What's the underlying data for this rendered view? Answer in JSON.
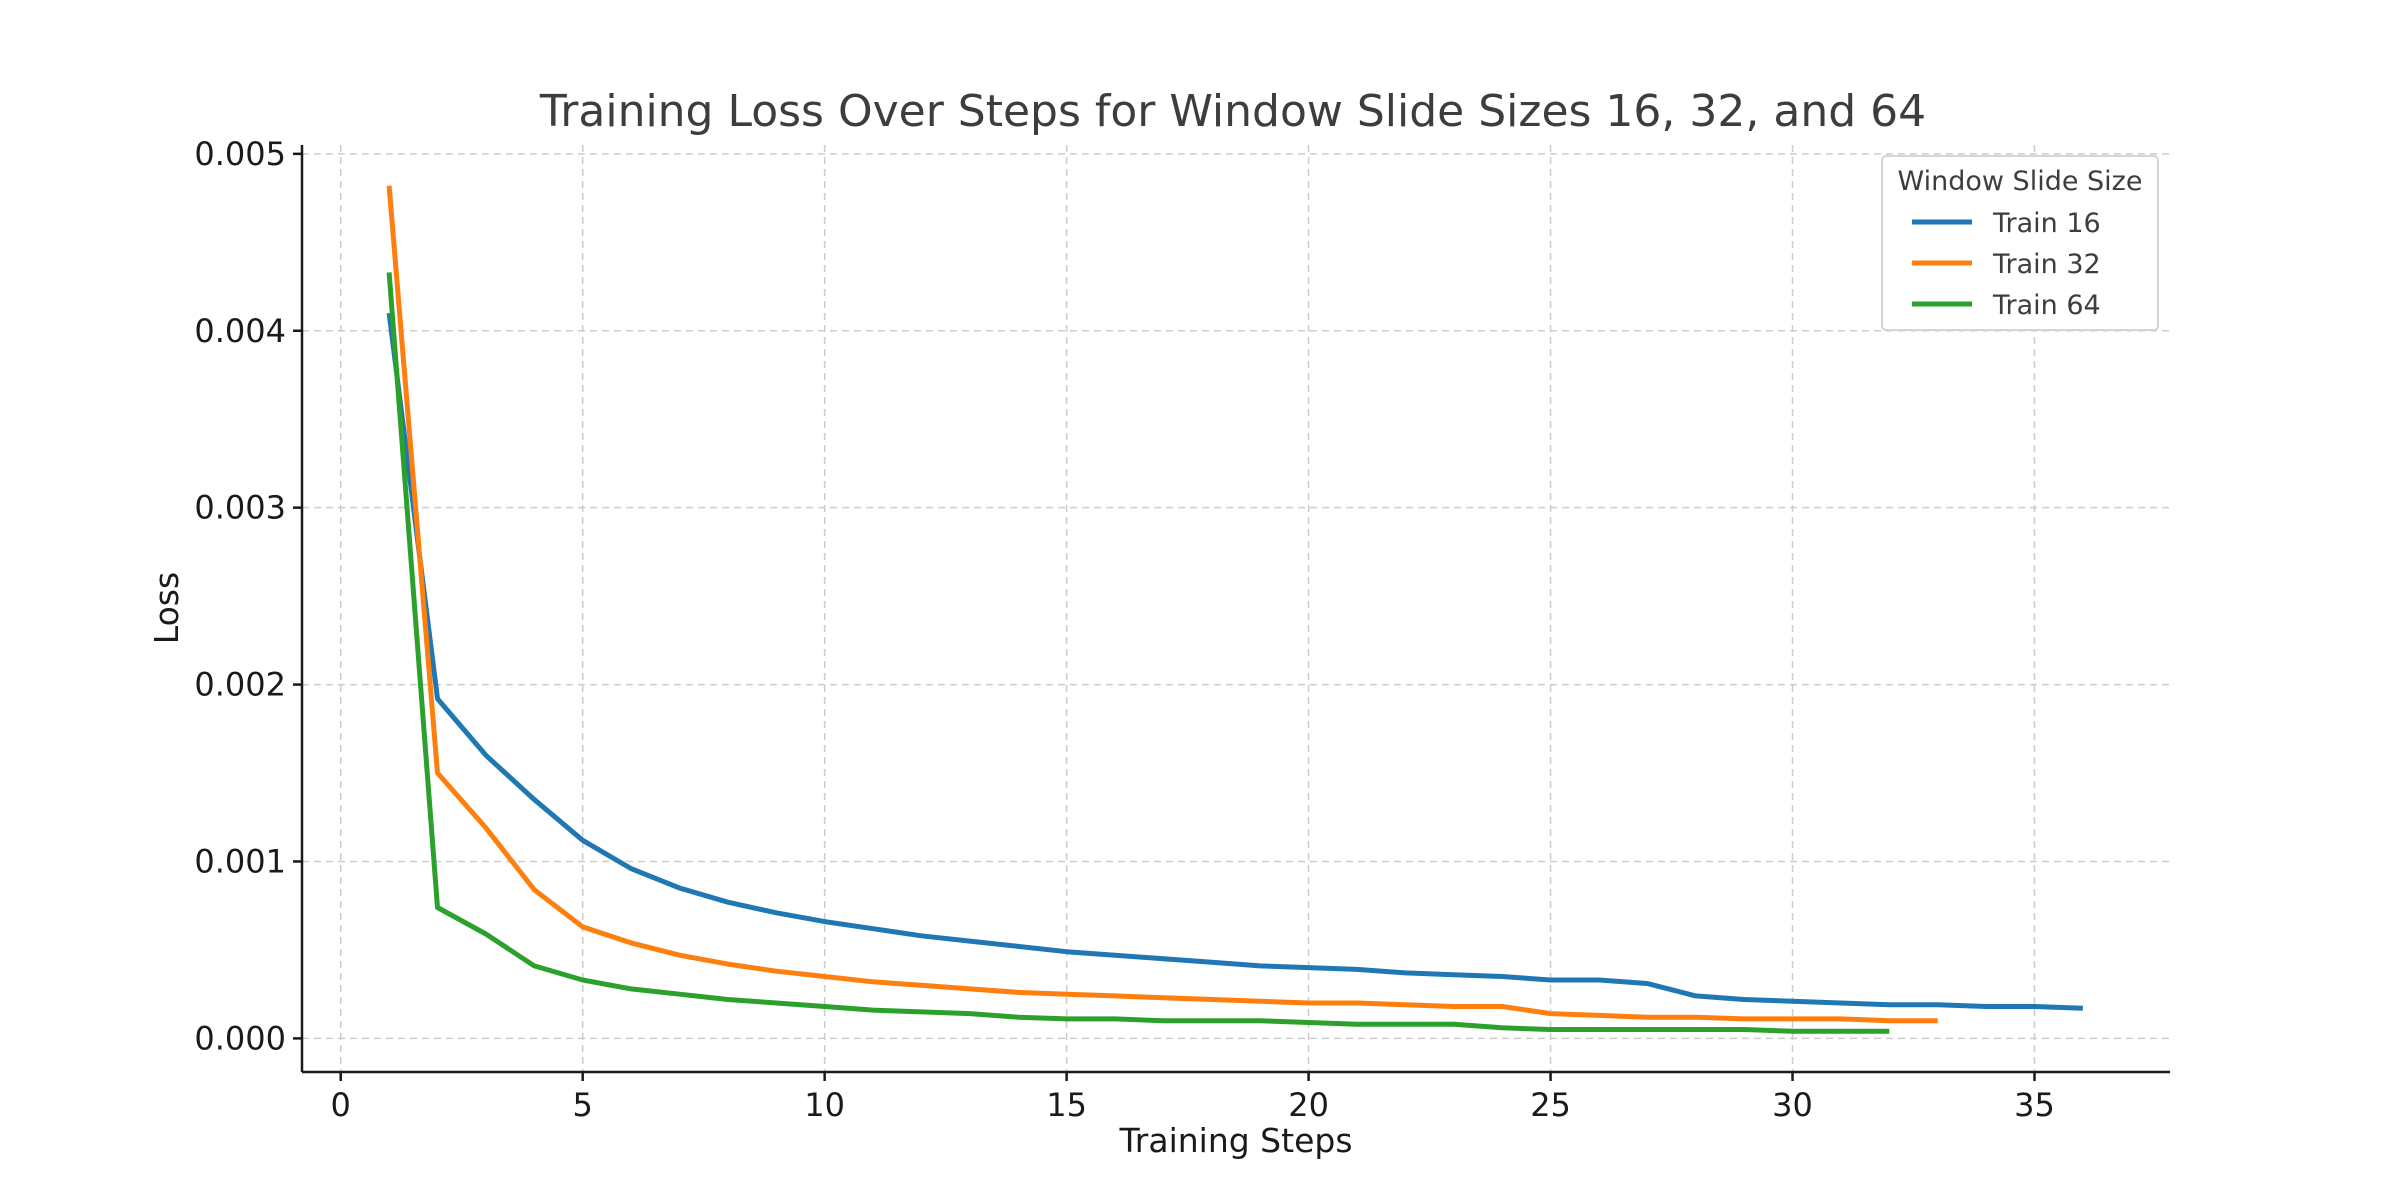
{
  "chart_data": {
    "type": "line",
    "title": "Training Loss Over Steps for Window Slide Sizes 16, 32, and 64",
    "xlabel": "Training Steps",
    "ylabel": "Loss",
    "xlim": [
      -0.8,
      37.8
    ],
    "ylim": [
      -0.00019,
      0.00505
    ],
    "x_ticks": [
      0,
      5,
      10,
      15,
      20,
      25,
      30,
      35
    ],
    "x_tick_labels": [
      "0",
      "5",
      "10",
      "15",
      "20",
      "25",
      "30",
      "35"
    ],
    "y_ticks": [
      0,
      0.001,
      0.002,
      0.003,
      0.004,
      0.005
    ],
    "y_tick_labels": [
      "0.000",
      "0.001",
      "0.002",
      "0.003",
      "0.004",
      "0.005"
    ],
    "grid": true,
    "legend": {
      "title": "Window Slide Size",
      "placement": "top-right"
    },
    "series": [
      {
        "name": "Train 16",
        "color": "#1f77b4",
        "x": [
          1,
          2,
          3,
          4,
          5,
          6,
          7,
          8,
          9,
          10,
          11,
          12,
          13,
          14,
          15,
          16,
          17,
          18,
          19,
          20,
          21,
          22,
          23,
          24,
          25,
          26,
          27,
          28,
          29,
          30,
          31,
          32,
          33,
          34,
          35,
          36
        ],
        "y": [
          0.0041,
          0.00192,
          0.0016,
          0.00135,
          0.00112,
          0.00096,
          0.00085,
          0.00077,
          0.00071,
          0.00066,
          0.00062,
          0.00058,
          0.00055,
          0.00052,
          0.00049,
          0.00047,
          0.00045,
          0.00043,
          0.00041,
          0.0004,
          0.00039,
          0.00037,
          0.00036,
          0.00035,
          0.00033,
          0.00033,
          0.00031,
          0.00024,
          0.00022,
          0.00021,
          0.0002,
          0.00019,
          0.00019,
          0.00018,
          0.00018,
          0.00017
        ]
      },
      {
        "name": "Train 32",
        "color": "#ff7f0e",
        "x": [
          1,
          2,
          3,
          4,
          5,
          6,
          7,
          8,
          9,
          10,
          11,
          12,
          13,
          14,
          15,
          16,
          17,
          18,
          19,
          20,
          21,
          22,
          23,
          24,
          25,
          26,
          27,
          28,
          29,
          30,
          31,
          32,
          33
        ],
        "y": [
          0.00482,
          0.0015,
          0.00119,
          0.00084,
          0.00063,
          0.00054,
          0.00047,
          0.00042,
          0.00038,
          0.00035,
          0.00032,
          0.0003,
          0.00028,
          0.00026,
          0.00025,
          0.00024,
          0.00023,
          0.00022,
          0.00021,
          0.0002,
          0.0002,
          0.00019,
          0.00018,
          0.00018,
          0.00014,
          0.00013,
          0.00012,
          0.00012,
          0.00011,
          0.00011,
          0.00011,
          0.0001,
          0.0001
        ]
      },
      {
        "name": "Train 64",
        "color": "#2ca02c",
        "x": [
          1,
          2,
          3,
          4,
          5,
          6,
          7,
          8,
          9,
          10,
          11,
          12,
          13,
          14,
          15,
          16,
          17,
          18,
          19,
          20,
          21,
          22,
          23,
          24,
          25,
          26,
          27,
          28,
          29,
          30,
          31,
          32
        ],
        "y": [
          0.00433,
          0.00074,
          0.00059,
          0.00041,
          0.00033,
          0.00028,
          0.00025,
          0.00022,
          0.0002,
          0.00018,
          0.00016,
          0.00015,
          0.00014,
          0.00012,
          0.00011,
          0.00011,
          0.0001,
          0.0001,
          0.0001,
          9e-05,
          8e-05,
          8e-05,
          8e-05,
          6e-05,
          5e-05,
          5e-05,
          5e-05,
          5e-05,
          5e-05,
          4e-05,
          4e-05,
          4e-05
        ]
      }
    ]
  }
}
